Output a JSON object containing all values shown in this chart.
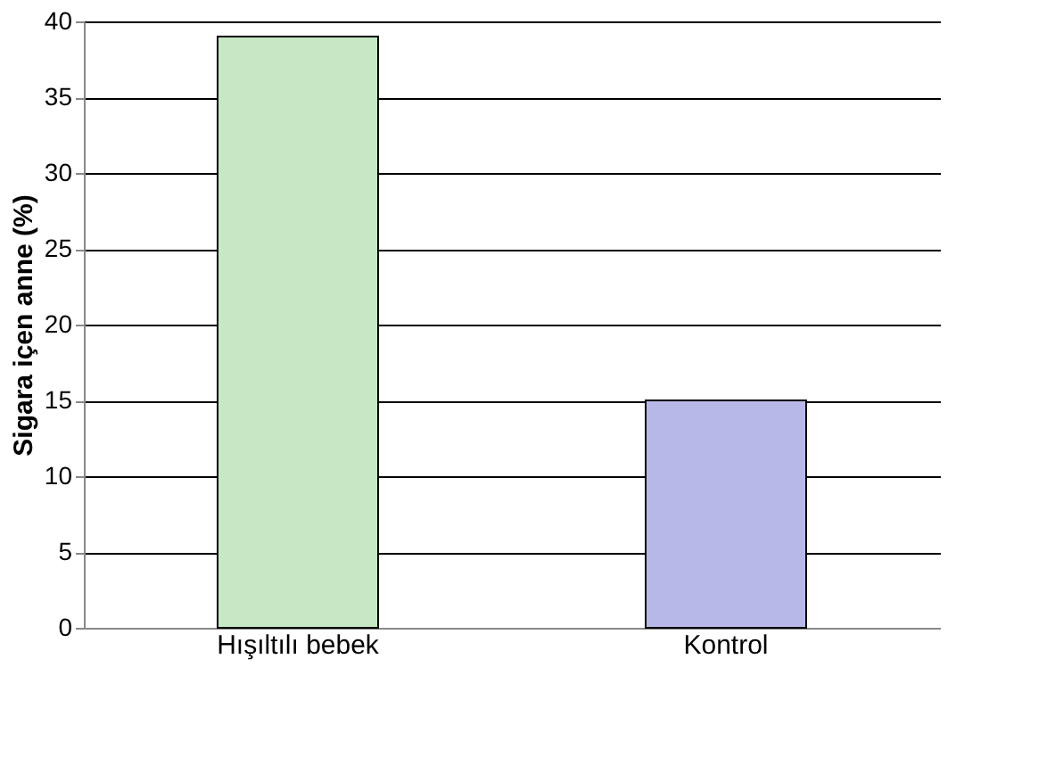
{
  "chart_data": {
    "type": "bar",
    "ylabel": "Sigara içen anne (%)",
    "categories": [
      "Hışıltılı bebek",
      "Kontrol"
    ],
    "values": [
      39,
      15
    ],
    "colors": [
      "#c6e8c4",
      "#b8b8e8"
    ],
    "ylim": [
      0,
      40
    ],
    "yticks": [
      0,
      5,
      10,
      15,
      20,
      25,
      30,
      35,
      40
    ],
    "grid": "y"
  }
}
